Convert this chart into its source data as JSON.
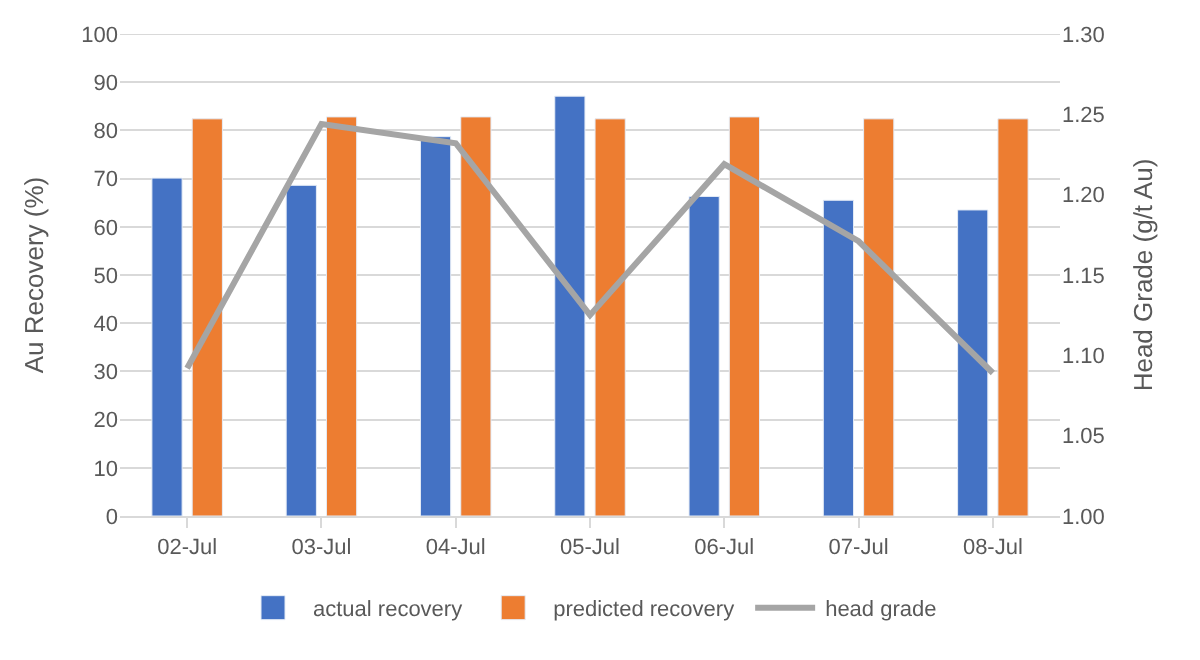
{
  "chart_data": {
    "type": "bar",
    "categories": [
      "02-Jul",
      "03-Jul",
      "04-Jul",
      "05-Jul",
      "06-Jul",
      "07-Jul",
      "08-Jul"
    ],
    "series": [
      {
        "name": "actual recovery",
        "color": "#4472c4",
        "values": [
          70.1,
          68.6,
          78.7,
          87.1,
          66.3,
          65.5,
          63.5
        ]
      },
      {
        "name": "predicted recovery",
        "color": "#ed7d31",
        "values": [
          82.4,
          82.8,
          82.8,
          82.4,
          82.8,
          82.4,
          82.4
        ]
      },
      {
        "name": "head grade",
        "color": "#a5a5a5",
        "type": "line",
        "axis": "y2",
        "marker": "none",
        "values": [
          1.092,
          1.244,
          1.232,
          1.125,
          1.219,
          1.171,
          1.089
        ]
      }
    ],
    "ylabel": "Au Recovery (%)",
    "y2label": "Head Grade (g/t Au)",
    "ylim": [
      0,
      100
    ],
    "yticks": [
      0,
      10,
      20,
      30,
      40,
      50,
      60,
      70,
      80,
      90,
      100
    ],
    "y2lim": [
      1.0,
      1.3
    ],
    "y2ticks": [
      {
        "value": 1.0,
        "label": "1.00"
      },
      {
        "value": 1.05,
        "label": "1.05"
      },
      {
        "value": 1.1,
        "label": "1.10"
      },
      {
        "value": 1.15,
        "label": "1.15"
      },
      {
        "value": 1.2,
        "label": "1.20"
      },
      {
        "value": 1.25,
        "label": "1.25"
      },
      {
        "value": 1.3,
        "label": "1.30"
      }
    ],
    "grid": "y",
    "legend": "bottom"
  }
}
